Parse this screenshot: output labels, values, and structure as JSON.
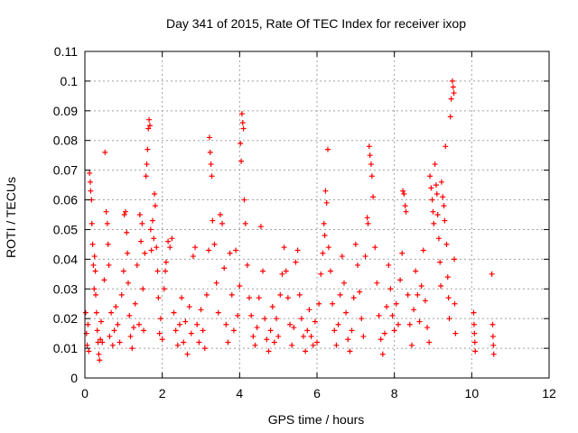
{
  "chart_data": {
    "type": "scatter",
    "title": "Day 341 of 2015, Rate Of TEC Index for receiver ixop",
    "xlabel": "GPS time / hours",
    "ylabel": "ROTI / TECUs",
    "xlim": [
      0,
      12
    ],
    "ylim": [
      0,
      0.11
    ],
    "x_ticks": [
      0,
      2,
      4,
      6,
      8,
      10,
      12
    ],
    "y_ticks": [
      0,
      0.01,
      0.02,
      0.03,
      0.04,
      0.05,
      0.06,
      0.07,
      0.08,
      0.09,
      0.1,
      0.11
    ],
    "grid": true,
    "marker": "+",
    "marker_color": "#ff0000",
    "series": [
      {
        "name": "ROTI",
        "points": [
          [
            0.02,
            0.022
          ],
          [
            0.04,
            0.015
          ],
          [
            0.06,
            0.011
          ],
          [
            0.08,
            0.018
          ],
          [
            0.1,
            0.009
          ],
          [
            0.12,
            0.069
          ],
          [
            0.14,
            0.066
          ],
          [
            0.15,
            0.063
          ],
          [
            0.17,
            0.06
          ],
          [
            0.18,
            0.052
          ],
          [
            0.2,
            0.045
          ],
          [
            0.22,
            0.038
          ],
          [
            0.24,
            0.03
          ],
          [
            0.25,
            0.041
          ],
          [
            0.27,
            0.036
          ],
          [
            0.28,
            0.028
          ],
          [
            0.3,
            0.022
          ],
          [
            0.32,
            0.016
          ],
          [
            0.34,
            0.012
          ],
          [
            0.36,
            0.008
          ],
          [
            0.38,
            0.006
          ],
          [
            0.4,
            0.013
          ],
          [
            0.42,
            0.019
          ],
          [
            0.45,
            0.012
          ],
          [
            0.5,
            0.033
          ],
          [
            0.52,
            0.076
          ],
          [
            0.55,
            0.056
          ],
          [
            0.58,
            0.052
          ],
          [
            0.6,
            0.045
          ],
          [
            0.62,
            0.038
          ],
          [
            0.64,
            0.014
          ],
          [
            0.68,
            0.022
          ],
          [
            0.72,
            0.011
          ],
          [
            0.76,
            0.016
          ],
          [
            0.8,
            0.024
          ],
          [
            0.85,
            0.018
          ],
          [
            0.9,
            0.012
          ],
          [
            0.95,
            0.028
          ],
          [
            1.0,
            0.036
          ],
          [
            1.02,
            0.055
          ],
          [
            1.05,
            0.056
          ],
          [
            1.08,
            0.049
          ],
          [
            1.1,
            0.042
          ],
          [
            1.12,
            0.032
          ],
          [
            1.15,
            0.021
          ],
          [
            1.18,
            0.014
          ],
          [
            1.22,
            0.01
          ],
          [
            1.26,
            0.017
          ],
          [
            1.3,
            0.025
          ],
          [
            1.35,
            0.038
          ],
          [
            1.4,
            0.018
          ],
          [
            1.42,
            0.055
          ],
          [
            1.45,
            0.046
          ],
          [
            1.48,
            0.052
          ],
          [
            1.5,
            0.03
          ],
          [
            1.52,
            0.016
          ],
          [
            1.55,
            0.042
          ],
          [
            1.58,
            0.068
          ],
          [
            1.6,
            0.072
          ],
          [
            1.62,
            0.077
          ],
          [
            1.64,
            0.084
          ],
          [
            1.66,
            0.087
          ],
          [
            1.68,
            0.085
          ],
          [
            1.7,
            0.05
          ],
          [
            1.72,
            0.043
          ],
          [
            1.75,
            0.053
          ],
          [
            1.78,
            0.047
          ],
          [
            1.8,
            0.062
          ],
          [
            1.82,
            0.058
          ],
          [
            1.85,
            0.044
          ],
          [
            1.88,
            0.036
          ],
          [
            1.9,
            0.027
          ],
          [
            1.93,
            0.015
          ],
          [
            1.96,
            0.02
          ],
          [
            2.0,
            0.013
          ],
          [
            2.05,
            0.03
          ],
          [
            2.08,
            0.036
          ],
          [
            2.1,
            0.039
          ],
          [
            2.15,
            0.046
          ],
          [
            2.2,
            0.044
          ],
          [
            2.25,
            0.047
          ],
          [
            2.3,
            0.022
          ],
          [
            2.35,
            0.016
          ],
          [
            2.4,
            0.011
          ],
          [
            2.45,
            0.018
          ],
          [
            2.5,
            0.027
          ],
          [
            2.55,
            0.012
          ],
          [
            2.6,
            0.019
          ],
          [
            2.65,
            0.008
          ],
          [
            2.7,
            0.024
          ],
          [
            2.75,
            0.015
          ],
          [
            2.8,
            0.041
          ],
          [
            2.85,
            0.044
          ],
          [
            2.9,
            0.018
          ],
          [
            2.95,
            0.012
          ],
          [
            3.0,
            0.023
          ],
          [
            3.05,
            0.016
          ],
          [
            3.1,
            0.01
          ],
          [
            3.15,
            0.028
          ],
          [
            3.2,
            0.043
          ],
          [
            3.22,
            0.081
          ],
          [
            3.24,
            0.076
          ],
          [
            3.26,
            0.072
          ],
          [
            3.28,
            0.068
          ],
          [
            3.3,
            0.053
          ],
          [
            3.35,
            0.045
          ],
          [
            3.4,
            0.032
          ],
          [
            3.45,
            0.022
          ],
          [
            3.5,
            0.055
          ],
          [
            3.55,
            0.052
          ],
          [
            3.6,
            0.037
          ],
          [
            3.65,
            0.018
          ],
          [
            3.7,
            0.012
          ],
          [
            3.75,
            0.042
          ],
          [
            3.8,
            0.028
          ],
          [
            3.85,
            0.016
          ],
          [
            3.9,
            0.043
          ],
          [
            3.95,
            0.021
          ],
          [
            4.0,
            0.031
          ],
          [
            4.02,
            0.079
          ],
          [
            4.04,
            0.073
          ],
          [
            4.06,
            0.089
          ],
          [
            4.08,
            0.086
          ],
          [
            4.1,
            0.084
          ],
          [
            4.12,
            0.06
          ],
          [
            4.15,
            0.052
          ],
          [
            4.2,
            0.038
          ],
          [
            4.25,
            0.027
          ],
          [
            4.3,
            0.021
          ],
          [
            4.35,
            0.014
          ],
          [
            4.4,
            0.011
          ],
          [
            4.45,
            0.017
          ],
          [
            4.5,
            0.027
          ],
          [
            4.55,
            0.051
          ],
          [
            4.6,
            0.036
          ],
          [
            4.65,
            0.02
          ],
          [
            4.7,
            0.013
          ],
          [
            4.75,
            0.009
          ],
          [
            4.8,
            0.016
          ],
          [
            4.85,
            0.024
          ],
          [
            4.9,
            0.012
          ],
          [
            4.95,
            0.02
          ],
          [
            5.0,
            0.014
          ],
          [
            5.05,
            0.028
          ],
          [
            5.1,
            0.035
          ],
          [
            5.15,
            0.044
          ],
          [
            5.2,
            0.036
          ],
          [
            5.25,
            0.027
          ],
          [
            5.3,
            0.018
          ],
          [
            5.35,
            0.011
          ],
          [
            5.4,
            0.017
          ],
          [
            5.45,
            0.039
          ],
          [
            5.5,
            0.043
          ],
          [
            5.55,
            0.028
          ],
          [
            5.6,
            0.02
          ],
          [
            5.65,
            0.014
          ],
          [
            5.7,
            0.009
          ],
          [
            5.75,
            0.016
          ],
          [
            5.8,
            0.023
          ],
          [
            5.85,
            0.014
          ],
          [
            5.9,
            0.011
          ],
          [
            5.95,
            0.019
          ],
          [
            6.0,
            0.012
          ],
          [
            6.05,
            0.025
          ],
          [
            6.1,
            0.035
          ],
          [
            6.15,
            0.042
          ],
          [
            6.18,
            0.052
          ],
          [
            6.2,
            0.048
          ],
          [
            6.22,
            0.063
          ],
          [
            6.25,
            0.059
          ],
          [
            6.28,
            0.077
          ],
          [
            6.3,
            0.044
          ],
          [
            6.35,
            0.036
          ],
          [
            6.4,
            0.025
          ],
          [
            6.45,
            0.016
          ],
          [
            6.5,
            0.011
          ],
          [
            6.55,
            0.018
          ],
          [
            6.6,
            0.028
          ],
          [
            6.65,
            0.041
          ],
          [
            6.7,
            0.032
          ],
          [
            6.75,
            0.022
          ],
          [
            6.8,
            0.013
          ],
          [
            6.85,
            0.009
          ],
          [
            6.9,
            0.016
          ],
          [
            6.95,
            0.027
          ],
          [
            7.0,
            0.045
          ],
          [
            7.05,
            0.038
          ],
          [
            7.1,
            0.029
          ],
          [
            7.15,
            0.02
          ],
          [
            7.2,
            0.014
          ],
          [
            7.25,
            0.041
          ],
          [
            7.3,
            0.054
          ],
          [
            7.32,
            0.052
          ],
          [
            7.35,
            0.078
          ],
          [
            7.37,
            0.075
          ],
          [
            7.4,
            0.072
          ],
          [
            7.42,
            0.068
          ],
          [
            7.45,
            0.061
          ],
          [
            7.5,
            0.044
          ],
          [
            7.55,
            0.032
          ],
          [
            7.6,
            0.021
          ],
          [
            7.65,
            0.013
          ],
          [
            7.7,
            0.008
          ],
          [
            7.75,
            0.015
          ],
          [
            7.8,
            0.024
          ],
          [
            7.85,
            0.038
          ],
          [
            7.9,
            0.03
          ],
          [
            7.95,
            0.021
          ],
          [
            8.0,
            0.016
          ],
          [
            8.05,
            0.025
          ],
          [
            8.1,
            0.018
          ],
          [
            8.15,
            0.033
          ],
          [
            8.2,
            0.042
          ],
          [
            8.22,
            0.063
          ],
          [
            8.25,
            0.062
          ],
          [
            8.28,
            0.058
          ],
          [
            8.3,
            0.056
          ],
          [
            8.35,
            0.028
          ],
          [
            8.4,
            0.018
          ],
          [
            8.45,
            0.011
          ],
          [
            8.5,
            0.023
          ],
          [
            8.55,
            0.036
          ],
          [
            8.6,
            0.028
          ],
          [
            8.65,
            0.019
          ],
          [
            8.7,
            0.031
          ],
          [
            8.75,
            0.043
          ],
          [
            8.8,
            0.026
          ],
          [
            8.85,
            0.017
          ],
          [
            8.9,
            0.012
          ],
          [
            8.92,
            0.068
          ],
          [
            8.95,
            0.064
          ],
          [
            8.98,
            0.06
          ],
          [
            9.0,
            0.056
          ],
          [
            9.02,
            0.052
          ],
          [
            9.05,
            0.072
          ],
          [
            9.08,
            0.065
          ],
          [
            9.1,
            0.062
          ],
          [
            9.12,
            0.055
          ],
          [
            9.15,
            0.047
          ],
          [
            9.18,
            0.039
          ],
          [
            9.2,
            0.031
          ],
          [
            9.22,
            0.066
          ],
          [
            9.25,
            0.061
          ],
          [
            9.28,
            0.058
          ],
          [
            9.3,
            0.053
          ],
          [
            9.32,
            0.078
          ],
          [
            9.35,
            0.045
          ],
          [
            9.38,
            0.034
          ],
          [
            9.4,
            0.027
          ],
          [
            9.42,
            0.02
          ],
          [
            9.45,
            0.088
          ],
          [
            9.47,
            0.094
          ],
          [
            9.5,
            0.1
          ],
          [
            9.52,
            0.098
          ],
          [
            9.54,
            0.096
          ],
          [
            9.55,
            0.04
          ],
          [
            9.56,
            0.025
          ],
          [
            9.58,
            0.015
          ],
          [
            10.05,
            0.022
          ],
          [
            10.06,
            0.018
          ],
          [
            10.07,
            0.015
          ],
          [
            10.08,
            0.012
          ],
          [
            10.09,
            0.009
          ],
          [
            10.52,
            0.035
          ],
          [
            10.54,
            0.018
          ],
          [
            10.55,
            0.014
          ],
          [
            10.56,
            0.011
          ],
          [
            10.57,
            0.008
          ]
        ]
      }
    ]
  }
}
